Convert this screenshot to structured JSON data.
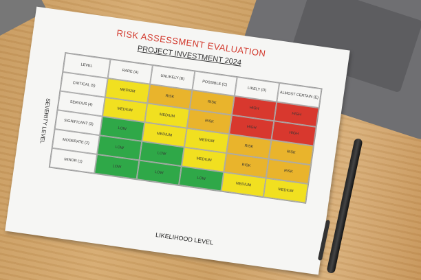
{
  "title": "RISK ASSESSMENT EVALUATION",
  "subtitle": "PROJECT INVESTMENT 2024",
  "matrix": {
    "corner": "LEVEL",
    "y_axis_label": "SEVERITY LEVEL",
    "x_axis_label": "LIKELIHOOD LEVEL",
    "columns": [
      "RARE (A)",
      "UNLIKELY (B)",
      "POSSIBLE (C)",
      "LIKELY (D)",
      "ALMOST CERTAIN (E)"
    ],
    "level_colors": {
      "LOW": "#2fa848",
      "MEDIUM": "#f1e020",
      "RISK": "#e9b42c",
      "HIGH": "#d8382e"
    },
    "rows": [
      {
        "label": "CRITICAL (5)",
        "cells": [
          "MEDIUM",
          "RISK",
          "RISK",
          "HIGH",
          "HIGH"
        ]
      },
      {
        "label": "SERIOUS (4)",
        "cells": [
          "MEDIUM",
          "MEDIUM",
          "RISK",
          "HIGH",
          "HIGH"
        ]
      },
      {
        "label": "SIGNIFICANT (3)",
        "cells": [
          "LOW",
          "MEDIUM",
          "MEDIUM",
          "RISK",
          "RISK"
        ]
      },
      {
        "label": "MODERATE (2)",
        "cells": [
          "LOW",
          "LOW",
          "MEDIUM",
          "RISK",
          "RISK"
        ]
      },
      {
        "label": "MINOR (1)",
        "cells": [
          "LOW",
          "LOW",
          "LOW",
          "MEDIUM",
          "MEDIUM"
        ]
      }
    ]
  }
}
